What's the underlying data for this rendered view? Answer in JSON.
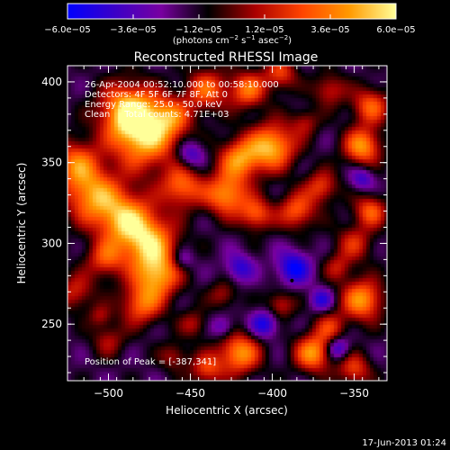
{
  "chart_data": {
    "type": "heatmap",
    "title": "Reconstructed RHESSI Image",
    "xlabel": "Heliocentric X (arcsec)",
    "ylabel": "Heliocentric Y (arcsec)",
    "xlim": [
      -525,
      -330
    ],
    "ylim": [
      215,
      410
    ],
    "x_ticks": [
      -500,
      -450,
      -400,
      -350
    ],
    "y_ticks": [
      250,
      300,
      350,
      400
    ],
    "x_tick_labels": [
      "−500",
      "−450",
      "−400",
      "−350"
    ],
    "y_tick_labels": [
      "250",
      "300",
      "350",
      "400"
    ],
    "colorbar": {
      "range": [
        -6e-05,
        6e-05
      ],
      "tick_values": [
        -6e-05,
        -3.6e-05,
        -1.2e-05,
        1.2e-05,
        3.6e-05,
        6e-05
      ],
      "tick_labels": [
        "−6.0e−05",
        "−3.6e−05",
        "−1.2e−05",
        "1.2e−05",
        "3.6e−05",
        "6.0e−05"
      ],
      "units_label": "(photons cm",
      "units_exp1": "−2",
      "units_mid": " s",
      "units_exp2": "−1",
      "units_end": " asec",
      "units_exp3": "−2",
      "units_close": ")",
      "colors": [
        "#0000ff",
        "#3a00c8",
        "#7800a0",
        "#000000",
        "#aa0000",
        "#ff4400",
        "#ff9900",
        "#ffff99"
      ]
    },
    "peak": {
      "x": -387,
      "y": 341
    },
    "blobs": [
      {
        "x": -488,
        "y": 382,
        "s": 12,
        "a": 1.0
      },
      {
        "x": -478,
        "y": 365,
        "s": 14,
        "a": 0.95
      },
      {
        "x": -462,
        "y": 378,
        "s": 9,
        "a": 0.6
      },
      {
        "x": -520,
        "y": 350,
        "s": 10,
        "a": 0.7
      },
      {
        "x": -510,
        "y": 330,
        "s": 12,
        "a": 0.85
      },
      {
        "x": -490,
        "y": 315,
        "s": 12,
        "a": 0.9
      },
      {
        "x": -475,
        "y": 300,
        "s": 12,
        "a": 0.9
      },
      {
        "x": -470,
        "y": 280,
        "s": 10,
        "a": 0.85
      },
      {
        "x": -480,
        "y": 262,
        "s": 9,
        "a": 0.7
      },
      {
        "x": -502,
        "y": 290,
        "s": 8,
        "a": 0.6
      },
      {
        "x": -520,
        "y": 270,
        "s": 8,
        "a": 0.5
      },
      {
        "x": -455,
        "y": 335,
        "s": 9,
        "a": 0.75
      },
      {
        "x": -440,
        "y": 395,
        "s": 9,
        "a": 0.7
      },
      {
        "x": -415,
        "y": 395,
        "s": 8,
        "a": 0.75
      },
      {
        "x": -395,
        "y": 405,
        "s": 7,
        "a": 0.6
      },
      {
        "x": -400,
        "y": 360,
        "s": 10,
        "a": 1.0
      },
      {
        "x": -420,
        "y": 352,
        "s": 9,
        "a": 0.85
      },
      {
        "x": -428,
        "y": 330,
        "s": 9,
        "a": 0.9
      },
      {
        "x": -410,
        "y": 318,
        "s": 7,
        "a": 0.7
      },
      {
        "x": -385,
        "y": 320,
        "s": 8,
        "a": 0.7
      },
      {
        "x": -370,
        "y": 335,
        "s": 7,
        "a": 0.6
      },
      {
        "x": -345,
        "y": 360,
        "s": 8,
        "a": 0.9
      },
      {
        "x": -340,
        "y": 385,
        "s": 8,
        "a": 0.7
      },
      {
        "x": -365,
        "y": 395,
        "s": 7,
        "a": 0.5
      },
      {
        "x": -340,
        "y": 320,
        "s": 7,
        "a": 0.7
      },
      {
        "x": -350,
        "y": 300,
        "s": 8,
        "a": 0.5
      },
      {
        "x": -345,
        "y": 265,
        "s": 9,
        "a": 0.9
      },
      {
        "x": -365,
        "y": 248,
        "s": 7,
        "a": 0.5
      },
      {
        "x": -375,
        "y": 232,
        "s": 8,
        "a": 0.9
      },
      {
        "x": -350,
        "y": 222,
        "s": 7,
        "a": 0.6
      },
      {
        "x": -420,
        "y": 232,
        "s": 9,
        "a": 0.9
      },
      {
        "x": -440,
        "y": 222,
        "s": 7,
        "a": 0.6
      },
      {
        "x": -460,
        "y": 230,
        "s": 6,
        "a": 0.4
      },
      {
        "x": -500,
        "y": 240,
        "s": 7,
        "a": 0.4
      },
      {
        "x": -395,
        "y": 262,
        "s": 6,
        "a": 0.5
      },
      {
        "x": -430,
        "y": 268,
        "s": 6,
        "a": 0.4
      },
      {
        "x": -448,
        "y": 250,
        "s": 6,
        "a": 0.4
      },
      {
        "x": -360,
        "y": 285,
        "s": 6,
        "a": 0.4
      },
      {
        "x": -380,
        "y": 375,
        "s": 6,
        "a": 0.4
      },
      {
        "x": -505,
        "y": 255,
        "s": 5,
        "a": 0.35
      },
      {
        "x": -405,
        "y": 250,
        "s": 6,
        "a": -0.6
      },
      {
        "x": -450,
        "y": 355,
        "s": 6,
        "a": -0.5
      },
      {
        "x": -387,
        "y": 285,
        "s": 7,
        "a": -0.7
      },
      {
        "x": -360,
        "y": 235,
        "s": 5,
        "a": -0.6
      },
      {
        "x": -345,
        "y": 340,
        "s": 5,
        "a": -0.45
      },
      {
        "x": -420,
        "y": 285,
        "s": 6,
        "a": -0.5
      },
      {
        "x": -455,
        "y": 290,
        "s": 5,
        "a": -0.4
      },
      {
        "x": -430,
        "y": 248,
        "s": 5,
        "a": -0.4
      },
      {
        "x": -370,
        "y": 265,
        "s": 5,
        "a": -0.5
      }
    ]
  },
  "annotations": {
    "time_range": "26-Apr-2004 00:52:10.000 to 00:58:10.000",
    "detectors": "Detectors: 4F 5F 6F 7F 8F, Att 0",
    "energy": "Energy Range: 25.0 - 50.0 keV",
    "clean": "Clean     Total counts: 4.71E+03",
    "peak": "Position of Peak = [-387,341]"
  },
  "footer": {
    "date": "17-Jun-2013 01:24"
  }
}
